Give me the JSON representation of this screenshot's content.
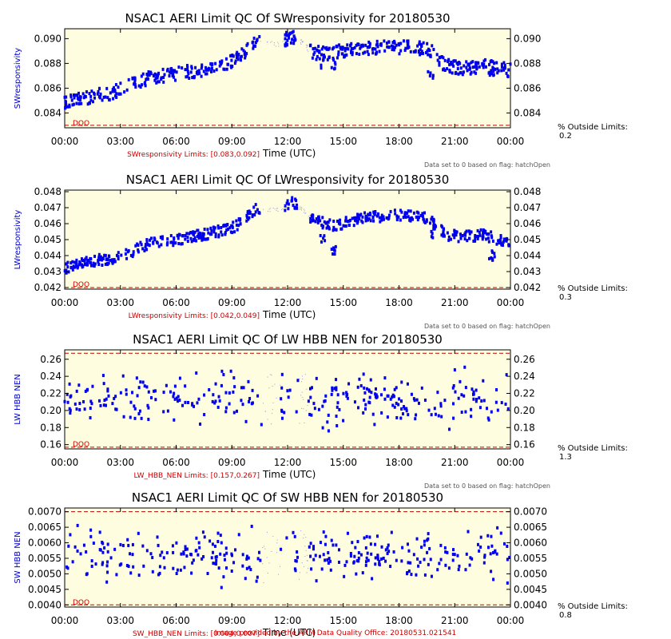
{
  "footer": "Image provided by the ARM Data Quality Office: 20180531.021541",
  "colors": {
    "data": "#0000ee",
    "limit": "#cc0000",
    "plot_bg": "#fffde0",
    "axis_label": "#0000cc"
  },
  "chart_data": [
    {
      "type": "scatter",
      "title": "NSAC1 AERI Limit QC Of SWresponsivity for 20180530",
      "ylabel": "SWresponsivity",
      "xlabel": "Time (UTC)",
      "limits_text": "SWresponsivity Limits: [0.083,0.092]",
      "flag_note": "Data set to 0 based on flag: hatchOpen",
      "outside_label": "% Outside Limits:",
      "outside_value": "0.2",
      "dqo": "DQO",
      "xlim": [
        0,
        24
      ],
      "ylim": [
        0.0828,
        0.0908
      ],
      "x_ticks": [
        "00:00",
        "03:00",
        "06:00",
        "09:00",
        "12:00",
        "15:00",
        "18:00",
        "21:00",
        "00:00"
      ],
      "y_ticks": [
        "0.084",
        "0.086",
        "0.088",
        "0.090"
      ],
      "y_tick_values": [
        0.084,
        0.086,
        0.088,
        0.09
      ],
      "limit_lines": [
        0.083
      ],
      "trend": [
        [
          0,
          0.0848
        ],
        [
          1,
          0.0852
        ],
        [
          2.5,
          0.0856
        ],
        [
          3.5,
          0.0862
        ],
        [
          4.5,
          0.0868
        ],
        [
          6,
          0.0872
        ],
        [
          7.5,
          0.0875
        ],
        [
          9,
          0.0882
        ],
        [
          9.7,
          0.0888
        ],
        [
          10.3,
          0.0898
        ],
        [
          11.5,
          0.0896
        ],
        [
          12.2,
          0.0902
        ],
        [
          12.7,
          0.0898
        ],
        [
          13.3,
          0.0889
        ],
        [
          14,
          0.0888
        ],
        [
          14.7,
          0.089
        ],
        [
          16,
          0.0892
        ],
        [
          17.5,
          0.0893
        ],
        [
          18.5,
          0.0893
        ],
        [
          19.6,
          0.0892
        ],
        [
          20.5,
          0.0878
        ],
        [
          21.5,
          0.0876
        ],
        [
          22.5,
          0.0878
        ],
        [
          23.4,
          0.0876
        ],
        [
          24,
          0.0874
        ]
      ],
      "noise": 0.0011,
      "gaps": [
        [
          10.5,
          11.8
        ],
        [
          12.6,
          13.2
        ]
      ],
      "dips": [
        [
          13.9,
          0.0876
        ],
        [
          14.5,
          0.0874
        ],
        [
          19.7,
          0.0868
        ],
        [
          23.0,
          0.0866
        ]
      ]
    },
    {
      "type": "scatter",
      "title": "NSAC1 AERI Limit QC Of LWresponsivity for 20180530",
      "ylabel": "LWresponsivity",
      "xlabel": "Time (UTC)",
      "limits_text": "LWresponsivity Limits: [0.042,0.049]",
      "flag_note": "Data set to 0 based on flag: hatchOpen",
      "outside_label": "% Outside Limits:",
      "outside_value": "0.3",
      "dqo": "DQO",
      "xlim": [
        0,
        24
      ],
      "ylim": [
        0.0419,
        0.0481
      ],
      "x_ticks": [
        "00:00",
        "03:00",
        "06:00",
        "09:00",
        "12:00",
        "15:00",
        "18:00",
        "21:00",
        "00:00"
      ],
      "y_ticks": [
        "0.042",
        "0.043",
        "0.044",
        "0.045",
        "0.046",
        "0.047",
        "0.048"
      ],
      "y_tick_values": [
        0.042,
        0.043,
        0.044,
        0.045,
        0.046,
        0.047,
        0.048
      ],
      "limit_lines": [
        0.042
      ],
      "trend": [
        [
          0,
          0.0432
        ],
        [
          1,
          0.0436
        ],
        [
          2.5,
          0.0438
        ],
        [
          3.5,
          0.0442
        ],
        [
          4.5,
          0.0447
        ],
        [
          6,
          0.045
        ],
        [
          7.5,
          0.0453
        ],
        [
          9,
          0.0457
        ],
        [
          9.7,
          0.0463
        ],
        [
          10.3,
          0.0469
        ],
        [
          11.5,
          0.0469
        ],
        [
          12.2,
          0.0474
        ],
        [
          12.7,
          0.047
        ],
        [
          13.3,
          0.0463
        ],
        [
          14,
          0.046
        ],
        [
          14.7,
          0.0459
        ],
        [
          16,
          0.0464
        ],
        [
          17.5,
          0.0465
        ],
        [
          18.5,
          0.0465
        ],
        [
          19.6,
          0.0463
        ],
        [
          20.5,
          0.0453
        ],
        [
          21.5,
          0.0452
        ],
        [
          22.5,
          0.0453
        ],
        [
          23.4,
          0.045
        ],
        [
          24,
          0.0448
        ]
      ],
      "noise": 0.0007,
      "gaps": [
        [
          10.5,
          11.8
        ],
        [
          12.6,
          13.2
        ]
      ],
      "dips": [
        [
          13.9,
          0.0446
        ],
        [
          14.5,
          0.044
        ],
        [
          19.7,
          0.045
        ],
        [
          23.0,
          0.0437
        ]
      ]
    },
    {
      "type": "scatter",
      "title": "NSAC1 AERI Limit QC Of LW HBB NEN for 20180530",
      "ylabel": "LW HBB NEN",
      "xlabel": "Time (UTC)",
      "limits_text": "LW_HBB_NEN Limits: [0.157,0.267]",
      "flag_note": "Data set to 0 based on flag: hatchOpen",
      "outside_label": "% Outside Limits:",
      "outside_value": "1.3",
      "dqo": "DQO",
      "xlim": [
        0,
        24
      ],
      "ylim": [
        0.155,
        0.271
      ],
      "x_ticks": [
        "00:00",
        "03:00",
        "06:00",
        "09:00",
        "12:00",
        "15:00",
        "18:00",
        "21:00",
        "00:00"
      ],
      "y_ticks": [
        "0.16",
        "0.18",
        "0.20",
        "0.22",
        "0.24",
        "0.26"
      ],
      "y_tick_values": [
        0.16,
        0.18,
        0.2,
        0.22,
        0.24,
        0.26
      ],
      "limit_lines": [
        0.157,
        0.267
      ],
      "center": 0.213,
      "spread": 0.038,
      "gaps": [
        [
          10.6,
          11.6
        ],
        [
          12.6,
          13.1
        ]
      ]
    },
    {
      "type": "scatter",
      "title": "NSAC1 AERI Limit QC Of SW HBB NEN for 20180530",
      "ylabel": "SW HBB NEN",
      "xlabel": "Time (UTC)",
      "limits_text": "SW_HBB_NEN Limits: [0.004,0.007]",
      "flag_note": "Data set to 0 based on flag: hatchOpen",
      "outside_label": "% Outside Limits:",
      "outside_value": "0.8",
      "dqo": "DQO",
      "xlim": [
        0,
        24
      ],
      "ylim": [
        0.00393,
        0.00712
      ],
      "x_ticks": [
        "00:00",
        "03:00",
        "06:00",
        "09:00",
        "12:00",
        "15:00",
        "18:00",
        "21:00",
        "00:00"
      ],
      "y_ticks": [
        "0.0040",
        "0.0045",
        "0.0050",
        "0.0055",
        "0.0060",
        "0.0065",
        "0.0070"
      ],
      "y_tick_values": [
        0.004,
        0.0045,
        0.005,
        0.0055,
        0.006,
        0.0065,
        0.007
      ],
      "limit_lines": [
        0.004,
        0.007
      ],
      "center": 0.0056,
      "spread": 0.0011,
      "gaps": [
        [
          10.6,
          11.6
        ],
        [
          12.6,
          13.1
        ]
      ]
    }
  ]
}
